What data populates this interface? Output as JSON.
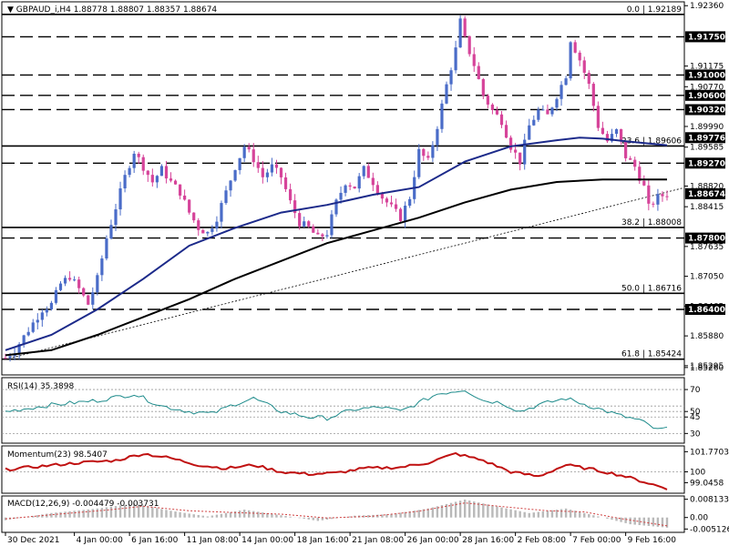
{
  "header": {
    "symbol": "GBPAUD_i,H4",
    "ohlc": "1.88778 1.88807 1.88357 1.88674"
  },
  "colors": {
    "bull": "#4a6cc8",
    "bear": "#d6449a",
    "ma_fast": "#1c2a8a",
    "ma_slow": "#000000",
    "rsi": "#1b8a8a",
    "momentum": "#c01010",
    "macd_hist": "#b9b9b9",
    "macd_signal": "#d04040",
    "price_tag_bg": "#000000",
    "price_tag_text": "#ffffff"
  },
  "chart_data": [
    {
      "type": "candlestick",
      "pane": "price",
      "ylim": [
        1.8515,
        1.924
      ],
      "y_ticks": [
        "1.92360",
        "1.91175",
        "1.90770",
        "1.89990",
        "1.89585",
        "1.88820",
        "1.88415",
        "1.87635",
        "1.87050",
        "1.86465",
        "1.85880",
        "1.85295",
        "1.85260"
      ],
      "level_labels": [
        {
          "value": 1.9175,
          "label": "1.91750"
        },
        {
          "value": 1.91,
          "label": "1.91000"
        },
        {
          "value": 1.906,
          "label": "1.90600"
        },
        {
          "value": 1.9032,
          "label": "1.90320"
        },
        {
          "value": 1.8977,
          "label": "1.89776"
        },
        {
          "value": 1.8927,
          "label": "1.89270"
        },
        {
          "value": 1.8867,
          "label": "1.88674"
        },
        {
          "value": 1.878,
          "label": "1.87800"
        },
        {
          "value": 1.864,
          "label": "1.86400"
        }
      ],
      "fib_levels": [
        {
          "value": 1.92189,
          "label": "0.0 | 1.92189"
        },
        {
          "value": 1.89606,
          "label": "23.6 | 1.89606"
        },
        {
          "value": 1.88008,
          "label": "38.2 | 1.88008"
        },
        {
          "value": 1.86716,
          "label": "50.0 | 1.86716"
        },
        {
          "value": 1.85424,
          "label": "61.8 | 1.85424"
        }
      ],
      "horizontal_lines": [
        1.9175,
        1.91,
        1.906,
        1.9032,
        1.8927,
        1.878,
        1.864
      ],
      "trendline": {
        "from": [
          0,
          1.8542
        ],
        "to": [
          125,
          1.8827
        ]
      },
      "x_ticks": [
        {
          "bar": 0,
          "label": "30 Dec 2021"
        },
        {
          "bar": 15,
          "label": "4 Jan 00:00"
        },
        {
          "bar": 27,
          "label": "6 Jan 16:00"
        },
        {
          "bar": 39,
          "label": "11 Jan 08:00"
        },
        {
          "bar": 51,
          "label": "14 Jan 00:00"
        },
        {
          "bar": 63,
          "label": "18 Jan 16:00"
        },
        {
          "bar": 75,
          "label": "21 Jan 08:00"
        },
        {
          "bar": 87,
          "label": "26 Jan 00:00"
        },
        {
          "bar": 99,
          "label": "28 Jan 16:00"
        },
        {
          "bar": 111,
          "label": "2 Feb 08:00"
        },
        {
          "bar": 123,
          "label": "7 Feb 00:00"
        },
        {
          "bar": 135,
          "label": "9 Feb 16:00"
        }
      ],
      "price_anchors": [
        [
          0,
          1.8545
        ],
        [
          2,
          1.856
        ],
        [
          5,
          1.86
        ],
        [
          8,
          1.864
        ],
        [
          10,
          1.865
        ],
        [
          12,
          1.869
        ],
        [
          14,
          1.8705
        ],
        [
          16,
          1.868
        ],
        [
          18,
          1.865
        ],
        [
          20,
          1.87
        ],
        [
          22,
          1.878
        ],
        [
          24,
          1.884
        ],
        [
          26,
          1.89
        ],
        [
          28,
          1.895
        ],
        [
          30,
          1.892
        ],
        [
          32,
          1.889
        ],
        [
          34,
          1.8915
        ],
        [
          36,
          1.889
        ],
        [
          38,
          1.887
        ],
        [
          40,
          1.883
        ],
        [
          42,
          1.88
        ],
        [
          44,
          1.879
        ],
        [
          46,
          1.882
        ],
        [
          48,
          1.887
        ],
        [
          50,
          1.892
        ],
        [
          52,
          1.896
        ],
        [
          54,
          1.8935
        ],
        [
          56,
          1.89
        ],
        [
          58,
          1.892
        ],
        [
          60,
          1.89
        ],
        [
          62,
          1.885
        ],
        [
          64,
          1.881
        ],
        [
          66,
          1.88
        ],
        [
          68,
          1.878
        ],
        [
          70,
          1.879
        ],
        [
          72,
          1.885
        ],
        [
          74,
          1.889
        ],
        [
          76,
          1.888
        ],
        [
          78,
          1.8915
        ],
        [
          80,
          1.889
        ],
        [
          82,
          1.886
        ],
        [
          84,
          1.884
        ],
        [
          86,
          1.882
        ],
        [
          88,
          1.886
        ],
        [
          90,
          1.895
        ],
        [
          92,
          1.893
        ],
        [
          94,
          1.9
        ],
        [
          96,
          1.908
        ],
        [
          98,
          1.915
        ],
        [
          99,
          1.9205
        ],
        [
          100,
          1.917
        ],
        [
          102,
          1.912
        ],
        [
          104,
          1.906
        ],
        [
          106,
          1.903
        ],
        [
          108,
          1.901
        ],
        [
          110,
          1.896
        ],
        [
          112,
          1.893
        ],
        [
          114,
          1.9
        ],
        [
          116,
          1.903
        ],
        [
          118,
          1.902
        ],
        [
          120,
          1.906
        ],
        [
          122,
          1.91
        ],
        [
          123,
          1.917
        ],
        [
          125,
          1.913
        ],
        [
          127,
          1.908
        ],
        [
          129,
          1.9
        ],
        [
          131,
          1.897
        ],
        [
          133,
          1.899
        ],
        [
          135,
          1.894
        ],
        [
          137,
          1.892
        ],
        [
          139,
          1.888
        ],
        [
          140,
          1.884
        ],
        [
          142,
          1.886
        ],
        [
          144,
          1.8867
        ]
      ],
      "ma_fast": [
        [
          0,
          1.856
        ],
        [
          10,
          1.859
        ],
        [
          20,
          1.864
        ],
        [
          30,
          1.87
        ],
        [
          40,
          1.8765
        ],
        [
          50,
          1.88
        ],
        [
          60,
          1.883
        ],
        [
          70,
          1.8845
        ],
        [
          80,
          1.8865
        ],
        [
          90,
          1.888
        ],
        [
          100,
          1.893
        ],
        [
          110,
          1.896
        ],
        [
          120,
          1.8972
        ],
        [
          125,
          1.8977
        ],
        [
          130,
          1.8975
        ],
        [
          135,
          1.897
        ],
        [
          144,
          1.8962
        ]
      ],
      "ma_slow": [
        [
          0,
          1.855
        ],
        [
          10,
          1.856
        ],
        [
          20,
          1.859
        ],
        [
          30,
          1.8625
        ],
        [
          40,
          1.866
        ],
        [
          50,
          1.87
        ],
        [
          60,
          1.8735
        ],
        [
          70,
          1.877
        ],
        [
          80,
          1.8795
        ],
        [
          90,
          1.882
        ],
        [
          100,
          1.885
        ],
        [
          110,
          1.8875
        ],
        [
          120,
          1.889
        ],
        [
          130,
          1.8895
        ],
        [
          144,
          1.8895
        ]
      ]
    },
    {
      "type": "line",
      "pane": "RSI",
      "title": "RSI(14) 35.3898",
      "ylim": [
        22,
        80
      ],
      "y_ticks": [
        {
          "value": 70,
          "label": "70"
        },
        {
          "value": 50,
          "label": "50"
        },
        {
          "value": 45,
          "label": "45"
        },
        {
          "value": 30,
          "label": "30"
        }
      ],
      "dotted_levels": [
        70,
        55,
        50,
        45,
        30
      ],
      "points": [
        [
          0,
          50
        ],
        [
          10,
          56
        ],
        [
          20,
          60
        ],
        [
          28,
          66
        ],
        [
          34,
          55
        ],
        [
          40,
          50
        ],
        [
          45,
          48
        ],
        [
          50,
          57
        ],
        [
          54,
          62
        ],
        [
          60,
          50
        ],
        [
          66,
          45
        ],
        [
          70,
          44
        ],
        [
          76,
          52
        ],
        [
          82,
          54
        ],
        [
          86,
          50
        ],
        [
          90,
          58
        ],
        [
          94,
          66
        ],
        [
          100,
          70
        ],
        [
          104,
          60
        ],
        [
          108,
          58
        ],
        [
          112,
          50
        ],
        [
          116,
          56
        ],
        [
          122,
          62
        ],
        [
          128,
          54
        ],
        [
          134,
          46
        ],
        [
          138,
          42
        ],
        [
          142,
          33
        ],
        [
          144,
          35
        ]
      ]
    },
    {
      "type": "line",
      "pane": "Momentum",
      "title": "Momentum(23) 98.5407",
      "ylim": [
        98.2,
        102.2
      ],
      "y_ticks": [
        {
          "value": 101.7703,
          "label": "101.7703"
        },
        {
          "value": 100,
          "label": "100"
        },
        {
          "value": 99.0458,
          "label": "99.0458"
        }
      ],
      "dotted_levels": [
        100
      ],
      "points": [
        [
          0,
          100.2
        ],
        [
          8,
          100.5
        ],
        [
          16,
          100.8
        ],
        [
          24,
          101.0
        ],
        [
          30,
          101.6
        ],
        [
          36,
          101.2
        ],
        [
          42,
          100.6
        ],
        [
          48,
          100.3
        ],
        [
          54,
          100.6
        ],
        [
          60,
          100.0
        ],
        [
          66,
          99.8
        ],
        [
          72,
          99.9
        ],
        [
          78,
          100.3
        ],
        [
          86,
          100.4
        ],
        [
          92,
          100.8
        ],
        [
          98,
          101.6
        ],
        [
          104,
          101.0
        ],
        [
          110,
          100.0
        ],
        [
          116,
          99.6
        ],
        [
          122,
          100.6
        ],
        [
          128,
          100.2
        ],
        [
          134,
          99.7
        ],
        [
          140,
          99.0
        ],
        [
          144,
          98.5
        ]
      ]
    },
    {
      "type": "bar",
      "pane": "MACD",
      "title": "MACD(12,26,9) -0.004479 -0.003731",
      "ylim": [
        -0.0062,
        0.0092
      ],
      "y_ticks": [
        {
          "value": 0.008133,
          "label": "0.008133"
        },
        {
          "value": 0,
          "label": "0.00"
        },
        {
          "value": -0.005126,
          "label": "-0.005126"
        }
      ],
      "histogram": [
        [
          0,
          -0.0012
        ],
        [
          10,
          0.002
        ],
        [
          20,
          0.004
        ],
        [
          28,
          0.0062
        ],
        [
          36,
          0.003
        ],
        [
          44,
          0.0005
        ],
        [
          52,
          0.0035
        ],
        [
          60,
          0.001
        ],
        [
          68,
          -0.0015
        ],
        [
          76,
          0.0008
        ],
        [
          84,
          0.0015
        ],
        [
          92,
          0.004
        ],
        [
          100,
          0.008
        ],
        [
          108,
          0.0045
        ],
        [
          114,
          0.002
        ],
        [
          122,
          0.004
        ],
        [
          130,
          0.0
        ],
        [
          136,
          -0.003
        ],
        [
          144,
          -0.0045
        ]
      ],
      "signal": [
        [
          0,
          -0.0006
        ],
        [
          12,
          0.0016
        ],
        [
          22,
          0.0033
        ],
        [
          30,
          0.005
        ],
        [
          40,
          0.003
        ],
        [
          50,
          0.0022
        ],
        [
          60,
          0.0015
        ],
        [
          70,
          -0.0002
        ],
        [
          80,
          0.0006
        ],
        [
          90,
          0.0028
        ],
        [
          100,
          0.0065
        ],
        [
          110,
          0.0045
        ],
        [
          118,
          0.003
        ],
        [
          126,
          0.0025
        ],
        [
          134,
          -0.0005
        ],
        [
          144,
          -0.0037
        ]
      ]
    }
  ]
}
